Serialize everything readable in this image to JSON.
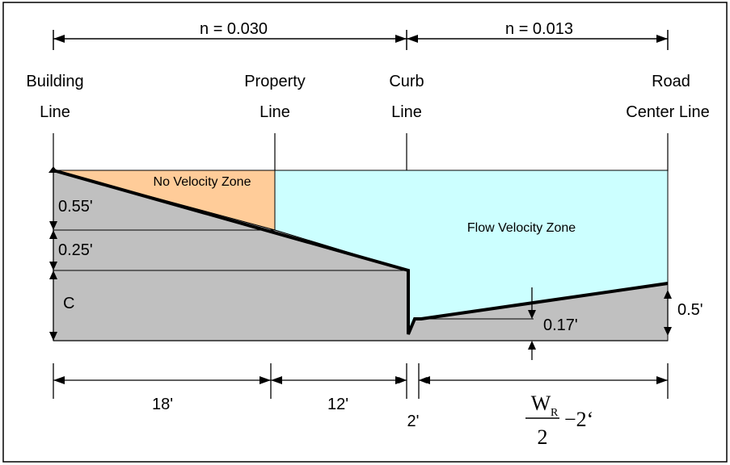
{
  "top_labels": {
    "n_left": "n = 0.030",
    "n_right": "n = 0.013"
  },
  "lines": {
    "building": [
      "Building",
      "Line"
    ],
    "property": [
      "Property",
      "Line"
    ],
    "curb": [
      "Curb",
      "Line"
    ],
    "road": [
      "Road",
      "Center Line"
    ]
  },
  "zones": {
    "no_velocity": "No Velocity Zone",
    "flow_velocity": "Flow Velocity Zone"
  },
  "dims_vertical": {
    "d1": "0.55'",
    "d2": "0.25'",
    "d3": "C",
    "gutter": "0.17'",
    "road": "0.5'"
  },
  "dims_bottom": {
    "seg1": "18'",
    "seg2": "12'",
    "seg3": "2'",
    "formula_num": "W",
    "formula_sub": "R",
    "formula_den": "2",
    "formula_rest": "−2‘"
  },
  "colors": {
    "ground": "#c0c0c0",
    "no_velocity": "#ffcc99",
    "flow": "#ccffff",
    "line": "#000000"
  }
}
